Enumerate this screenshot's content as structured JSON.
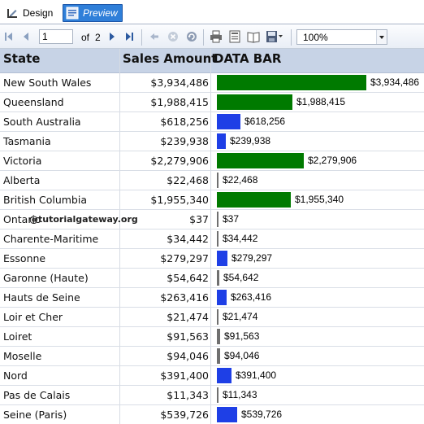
{
  "tabs": {
    "design_label": "Design",
    "preview_label": "Preview"
  },
  "toolbar": {
    "current_page": "1",
    "of_label": "of",
    "total_pages": "2",
    "zoom": "100%",
    "icons": [
      "first-page-icon",
      "previous-page-icon",
      "next-page-icon",
      "last-page-icon",
      "back-icon",
      "stop-icon",
      "refresh-icon",
      "print-icon",
      "print-layout-icon",
      "page-setup-icon",
      "export-icon"
    ]
  },
  "report": {
    "headers": {
      "state": "State",
      "sales": "Sales Amount",
      "bar": "DATA BAR"
    },
    "colors": {
      "green": "#007a00",
      "blue": "#1e3fe6",
      "gray": "#6f6f6f",
      "header_bg": "#c7d3e6"
    },
    "rows": [
      {
        "state": "New South Wales",
        "sales": "$3,934,486",
        "value": 3934486,
        "color": "#007a00"
      },
      {
        "state": "Queensland",
        "sales": "$1,988,415",
        "value": 1988415,
        "color": "#007a00"
      },
      {
        "state": "South Australia",
        "sales": "$618,256",
        "value": 618256,
        "color": "#1e3fe6"
      },
      {
        "state": "Tasmania",
        "sales": "$239,938",
        "value": 239938,
        "color": "#1e3fe6"
      },
      {
        "state": "Victoria",
        "sales": "$2,279,906",
        "value": 2279906,
        "color": "#007a00"
      },
      {
        "state": "Alberta",
        "sales": "$22,468",
        "value": 22468,
        "color": "#6f6f6f"
      },
      {
        "state": "British Columbia",
        "sales": "$1,955,340",
        "value": 1955340,
        "color": "#007a00"
      },
      {
        "state": "Ontario",
        "sales": "$37",
        "value": 37,
        "color": "#6f6f6f"
      },
      {
        "state": "Charente-Maritime",
        "sales": "$34,442",
        "value": 34442,
        "color": "#6f6f6f"
      },
      {
        "state": "Essonne",
        "sales": "$279,297",
        "value": 279297,
        "color": "#1e3fe6"
      },
      {
        "state": "Garonne (Haute)",
        "sales": "$54,642",
        "value": 54642,
        "color": "#6f6f6f"
      },
      {
        "state": "Hauts de Seine",
        "sales": "$263,416",
        "value": 263416,
        "color": "#1e3fe6"
      },
      {
        "state": "Loir et Cher",
        "sales": "$21,474",
        "value": 21474,
        "color": "#6f6f6f"
      },
      {
        "state": "Loiret",
        "sales": "$91,563",
        "value": 91563,
        "color": "#6f6f6f"
      },
      {
        "state": "Moselle",
        "sales": "$94,046",
        "value": 94046,
        "color": "#6f6f6f"
      },
      {
        "state": "Nord",
        "sales": "$391,400",
        "value": 391400,
        "color": "#1e3fe6"
      },
      {
        "state": "Pas de Calais",
        "sales": "$11,343",
        "value": 11343,
        "color": "#6f6f6f"
      },
      {
        "state": "Seine (Paris)",
        "sales": "$539,726",
        "value": 539726,
        "color": "#1e3fe6"
      }
    ],
    "watermark": "@tutorialgateway.org"
  }
}
